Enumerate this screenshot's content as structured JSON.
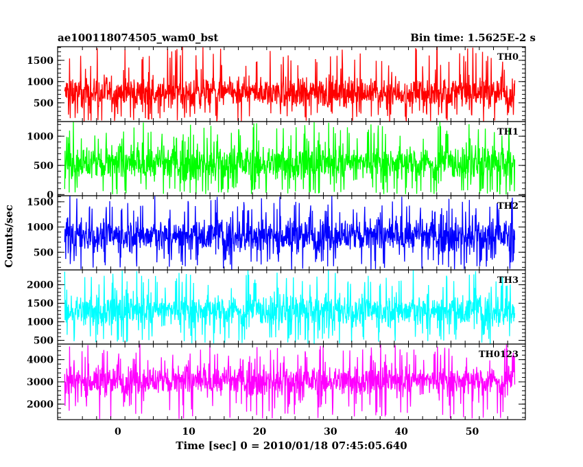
{
  "header": {
    "title": "ae100118074505_wam0_bst",
    "bin_time": "Bin time: 1.5625E-2 s"
  },
  "chart_data": {
    "type": "line",
    "title": "ae100118074505_wam0_bst",
    "xlabel": "Time [sec] 0 = 2010/01/18 07:45:05.640",
    "ylabel": "Counts/sec",
    "xlim": [
      -8.5,
      57.5
    ],
    "data_x_range": [
      -7.5,
      56
    ],
    "xticks_major": [
      0,
      10,
      20,
      30,
      40,
      50
    ],
    "xtick_labels": [
      "0",
      "10",
      "20",
      "30",
      "40",
      "50"
    ],
    "grid": false,
    "panels": [
      {
        "name": "TH0",
        "color": "#ff0000",
        "ylim": [
          60,
          1820
        ],
        "yticks": [
          500,
          1000,
          1500
        ],
        "ytick_labels": [
          "500",
          "1000",
          "1500"
        ],
        "band": {
          "typical_low": 280,
          "typical_high": 1200,
          "min": 60,
          "max": 1820
        }
      },
      {
        "name": "TH1",
        "color": "#00ff00",
        "ylim": [
          -20,
          1250
        ],
        "yticks": [
          0,
          500,
          1000
        ],
        "ytick_labels": [
          "0",
          "500",
          "1000"
        ],
        "band": {
          "typical_low": 120,
          "typical_high": 950,
          "min": 0,
          "max": 1250
        }
      },
      {
        "name": "TH2",
        "color": "#0000ff",
        "ylim": [
          150,
          1620
        ],
        "yticks": [
          500,
          1000,
          1500
        ],
        "ytick_labels": [
          "500",
          "1000",
          "1500"
        ],
        "band": {
          "typical_low": 380,
          "typical_high": 1280,
          "min": 150,
          "max": 1620
        }
      },
      {
        "name": "TH3",
        "color": "#00ffff",
        "ylim": [
          400,
          2400
        ],
        "yticks": [
          500,
          1000,
          1500,
          2000
        ],
        "ytick_labels": [
          "500",
          "1000",
          "1500",
          "2000"
        ],
        "band": {
          "typical_low": 700,
          "typical_high": 1900,
          "min": 400,
          "max": 2400
        }
      },
      {
        "name": "TH0123",
        "color": "#ff00ff",
        "ylim": [
          1300,
          4700
        ],
        "yticks": [
          2000,
          3000,
          4000
        ],
        "ytick_labels": [
          "2000",
          "3000",
          "4000"
        ],
        "band": {
          "typical_low": 2150,
          "typical_high": 3950,
          "min": 1300,
          "max": 4700
        }
      }
    ]
  }
}
